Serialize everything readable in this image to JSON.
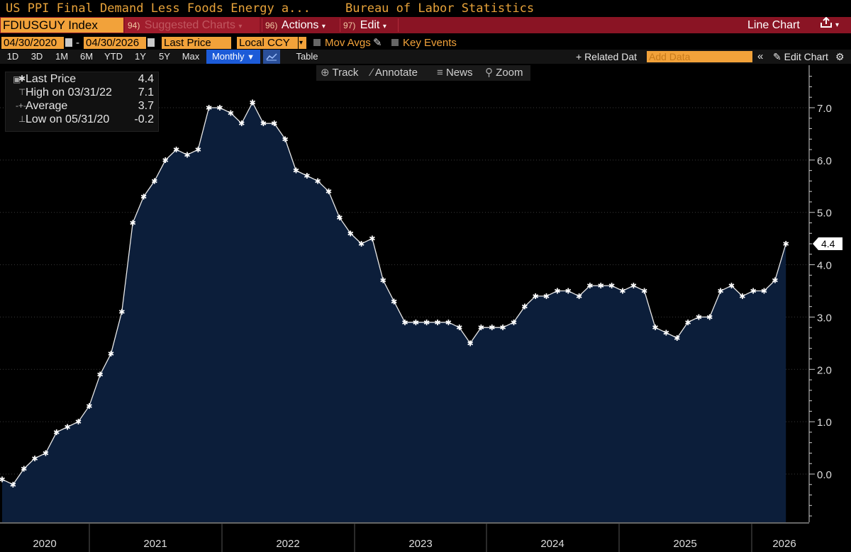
{
  "title_bar": {
    "series_title": "US PPI Final Demand Less Foods Energy a...",
    "source": "Bureau of Labor Statistics"
  },
  "toolbar": {
    "ticker": "FDIUSGUY Index",
    "suggested_num": "94)",
    "suggested_label": "Suggested Charts",
    "actions_num": "96)",
    "actions_label": "Actions",
    "edit_num": "97)",
    "edit_label": "Edit",
    "chart_type": "Line Chart"
  },
  "controls": {
    "start_date": "04/30/2020",
    "end_date": "04/30/2026",
    "field": "Last Price",
    "currency": "Local CCY",
    "mov_avgs": "Mov Avgs",
    "key_events": "Key Events"
  },
  "ranges": [
    "1D",
    "3D",
    "1M",
    "6M",
    "YTD",
    "1Y",
    "5Y",
    "Max"
  ],
  "frequency": "Monthly",
  "table_label": "Table",
  "related_data": "+ Related Dat",
  "add_data_placeholder": "Add Data",
  "edit_chart": "Edit Chart",
  "chart_tools": [
    "Track",
    "Annotate",
    "News",
    "Zoom"
  ],
  "legend": {
    "last_label": "Last Price",
    "last_value": "4.4",
    "high_label": "High on 03/31/22",
    "high_value": "7.1",
    "avg_label": "Average",
    "avg_value": "3.7",
    "low_label": "Low on 05/31/20",
    "low_value": "-0.2"
  },
  "last_value_tag": "4.4",
  "colors": {
    "accent_orange": "#f2a23a",
    "toolbar_red": "#8a1424",
    "area_fill": "#0c1e3a",
    "line": "#ffffff"
  },
  "chart_data": {
    "type": "area",
    "x": [
      "2020-04",
      "2020-05",
      "2020-06",
      "2020-07",
      "2020-08",
      "2020-09",
      "2020-10",
      "2020-11",
      "2020-12",
      "2021-01",
      "2021-02",
      "2021-03",
      "2021-04",
      "2021-05",
      "2021-06",
      "2021-07",
      "2021-08",
      "2021-09",
      "2021-10",
      "2021-11",
      "2021-12",
      "2022-01",
      "2022-02",
      "2022-03",
      "2022-04",
      "2022-05",
      "2022-06",
      "2022-07",
      "2022-08",
      "2022-09",
      "2022-10",
      "2022-11",
      "2022-12",
      "2023-01",
      "2023-02",
      "2023-03",
      "2023-04",
      "2023-05",
      "2023-06",
      "2023-07",
      "2023-08",
      "2023-09",
      "2023-10",
      "2023-11",
      "2023-12",
      "2024-01",
      "2024-02",
      "2024-03",
      "2024-04",
      "2024-05",
      "2024-06",
      "2024-07",
      "2024-08",
      "2024-09",
      "2024-10",
      "2024-11",
      "2024-12",
      "2025-01",
      "2025-02",
      "2025-03",
      "2025-04",
      "2025-05",
      "2025-06",
      "2025-07",
      "2025-08",
      "2025-09",
      "2025-10",
      "2025-11",
      "2025-12",
      "2026-01",
      "2026-02",
      "2026-03",
      "2026-04"
    ],
    "series": [
      {
        "values": [
          -0.1,
          -0.2,
          0.1,
          0.3,
          0.4,
          0.8,
          0.9,
          1.0,
          1.3,
          1.9,
          2.3,
          3.1,
          4.8,
          5.3,
          5.6,
          6.0,
          6.2,
          6.1,
          6.2,
          7.0,
          7.0,
          6.9,
          6.7,
          7.1,
          6.7,
          6.7,
          6.4,
          5.8,
          5.7,
          5.6,
          5.4,
          4.9,
          4.6,
          4.4,
          4.5,
          3.7,
          3.3,
          2.9,
          2.9,
          2.9,
          2.9,
          2.9,
          2.8,
          2.5,
          2.8,
          2.8,
          2.8,
          2.9,
          3.2,
          3.4,
          3.4,
          3.5,
          3.5,
          3.4,
          3.6,
          3.6,
          3.6,
          3.5,
          3.6,
          3.5,
          2.8,
          2.7,
          2.6,
          2.9,
          3.0,
          3.0,
          3.5,
          3.6,
          3.4,
          3.5,
          3.5,
          3.7,
          4.4
        ]
      }
    ],
    "ylim": [
      -0.9,
      7.6
    ],
    "y_ticks": [
      "0.0",
      "1.0",
      "2.0",
      "3.0",
      "4.0",
      "5.0",
      "6.0",
      "7.0"
    ],
    "x_tick_labels": [
      "2020",
      "2021",
      "2022",
      "2023",
      "2024",
      "2025",
      "2026"
    ],
    "grid": true,
    "legend_position": "top-left"
  }
}
